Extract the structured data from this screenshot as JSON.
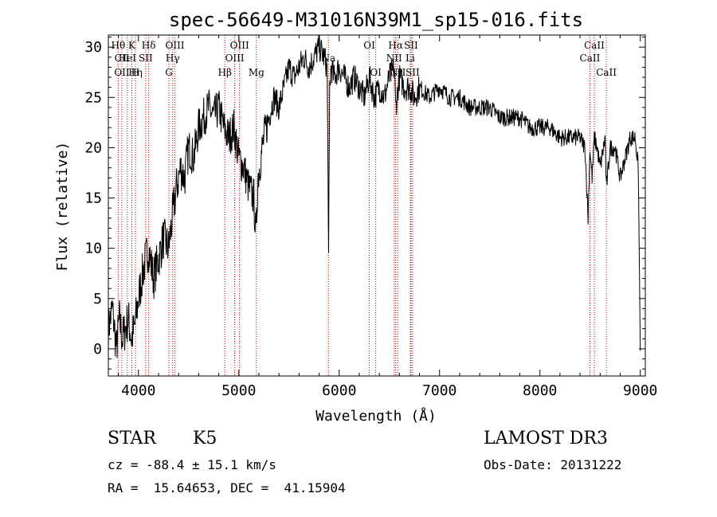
{
  "chart_data": {
    "type": "line",
    "title": "spec-56649-M31016N39M1_sp15-016.fits",
    "xlabel": "Wavelength (Å)",
    "ylabel": "Flux (relative)",
    "xlim": [
      3700,
      9050
    ],
    "ylim": [
      -2.7,
      31.2
    ],
    "xticks": [
      4000,
      5000,
      6000,
      7000,
      8000,
      9000
    ],
    "yticks": [
      0,
      5,
      10,
      15,
      20,
      25,
      30
    ],
    "grid": false,
    "series": [
      {
        "x": [
          3700,
          3740,
          3780,
          3810,
          3840,
          3870,
          3900,
          3930,
          3960,
          4000,
          4050,
          4100,
          4150,
          4200,
          4250,
          4300,
          4350,
          4380,
          4420,
          4460,
          4500,
          4550,
          4600,
          4650,
          4700,
          4750,
          4800,
          4850,
          4900,
          4950,
          5000,
          5050,
          5100,
          5150,
          5170,
          5190,
          5220,
          5250,
          5300,
          5350,
          5400,
          5450,
          5500,
          5550,
          5600,
          5650,
          5700,
          5750,
          5800,
          5850,
          5880,
          5895,
          5905,
          5920,
          5950,
          6000,
          6050,
          6100,
          6150,
          6200,
          6250,
          6300,
          6350,
          6400,
          6450,
          6500,
          6550,
          6563,
          6600,
          6650,
          6700,
          6750,
          6800,
          6900,
          7000,
          7100,
          7200,
          7300,
          7400,
          7500,
          7600,
          7700,
          7800,
          7900,
          8000,
          8100,
          8200,
          8300,
          8400,
          8450,
          8480,
          8498,
          8520,
          8542,
          8570,
          8600,
          8650,
          8662,
          8700,
          8750,
          8800,
          8850,
          8900,
          8950,
          8980,
          9000
        ],
        "values": [
          2,
          4,
          0,
          3,
          1,
          2,
          3,
          1,
          2,
          5,
          8,
          10,
          7,
          9,
          11,
          10,
          14,
          16,
          18,
          17,
          20,
          19,
          22,
          23,
          24,
          23,
          24,
          22,
          21,
          22,
          19,
          18,
          16,
          15,
          11,
          17,
          19,
          21,
          23,
          25,
          24,
          26,
          28,
          27,
          28,
          29,
          28,
          29,
          30,
          29,
          28,
          9,
          26,
          28,
          27,
          28,
          27,
          26,
          27,
          26,
          25,
          27,
          25,
          26,
          25,
          27,
          28,
          24,
          27,
          26,
          26,
          25,
          26,
          25,
          26,
          25,
          25,
          24,
          24,
          24,
          23,
          23,
          23,
          22,
          22,
          22,
          21,
          21,
          21,
          20,
          13,
          20,
          17,
          21,
          20,
          18,
          21,
          16,
          20,
          20,
          17,
          19,
          21,
          21,
          18,
          -0.2
        ]
      }
    ],
    "lines": [
      {
        "wavelength": 3798,
        "labels": [
          "Hθ"
        ],
        "row": 0
      },
      {
        "wavelength": 3835,
        "labels": [
          "CII",
          "OII"
        ],
        "row": 1
      },
      {
        "wavelength": 3889,
        "labels": [
          "HeI"
        ],
        "row": 1
      },
      {
        "wavelength": 3934,
        "labels": [
          "K"
        ],
        "row": 0
      },
      {
        "wavelength": 3970,
        "labels": [
          "Hη",
          "H"
        ],
        "row": 2
      },
      {
        "wavelength": 4072,
        "labels": [
          "SII"
        ],
        "row": 1
      },
      {
        "wavelength": 4102,
        "labels": [
          "Hδ"
        ],
        "row": 0
      },
      {
        "wavelength": 4304,
        "labels": [
          "G"
        ],
        "row": 2
      },
      {
        "wavelength": 4341,
        "labels": [
          "Hγ"
        ],
        "row": 1
      },
      {
        "wavelength": 4363,
        "labels": [
          "OIII"
        ],
        "row": 0
      },
      {
        "wavelength": 4861,
        "labels": [
          "Hβ"
        ],
        "row": 2
      },
      {
        "wavelength": 4959,
        "labels": [
          "OIII"
        ],
        "row": 1
      },
      {
        "wavelength": 5007,
        "labels": [
          "OIII"
        ],
        "row": 0
      },
      {
        "wavelength": 5175,
        "labels": [
          "Mg"
        ],
        "row": 2
      },
      {
        "wavelength": 5893,
        "labels": [
          "Na"
        ],
        "row": 1
      },
      {
        "wavelength": 6300,
        "labels": [
          "OI"
        ],
        "row": 0
      },
      {
        "wavelength": 6364,
        "labels": [
          "OI"
        ],
        "row": 2
      },
      {
        "wavelength": 6548,
        "labels": [
          "NII"
        ],
        "row": 1
      },
      {
        "wavelength": 6563,
        "labels": [
          "Hα"
        ],
        "row": 0
      },
      {
        "wavelength": 6584,
        "labels": [
          "NII"
        ],
        "row": 2
      },
      {
        "wavelength": 6708,
        "labels": [
          "Li"
        ],
        "row": 1
      },
      {
        "wavelength": 6716,
        "labels": [
          "SII"
        ],
        "row": 0
      },
      {
        "wavelength": 6731,
        "labels": [
          "SII"
        ],
        "row": 2
      },
      {
        "wavelength": 8498,
        "labels": [
          "CaII"
        ],
        "row": 1
      },
      {
        "wavelength": 8542,
        "labels": [
          "CaII"
        ],
        "row": 0
      },
      {
        "wavelength": 8662,
        "labels": [
          "CaII"
        ],
        "row": 2
      }
    ]
  },
  "info": {
    "object_class": "STAR",
    "subclass": "K5",
    "survey": "LAMOST DR3",
    "redshift": "cz = -88.4 ± 15.1 km/s",
    "obs_date": "Obs-Date: 20131222",
    "coords": "RA =  15.64653, DEC =  41.15904"
  },
  "colors": {
    "spectrum": "#000000",
    "line_marker": "#cc0000",
    "background": "#ffffff"
  }
}
